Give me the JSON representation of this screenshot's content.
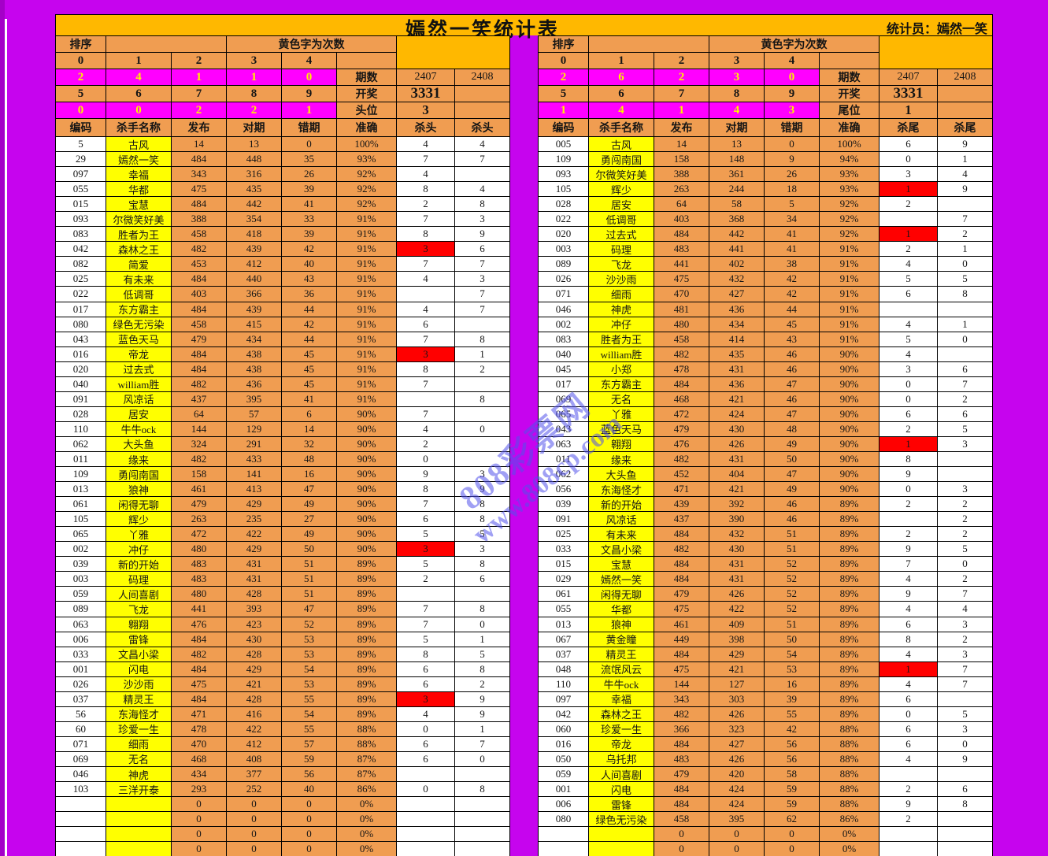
{
  "title": "嫣然一笑统计表",
  "statistician": "统计员：嫣然一笑",
  "watermark": {
    "line1": "808彩票网",
    "line2": "www.808cp.com"
  },
  "colors": {
    "background": "#C604EE",
    "gold": "#FFB800",
    "cell_orange": "#F09D51",
    "magenta": "#FF00FF",
    "yellow": "#FFFF00",
    "red_highlight": "#FF0000",
    "watermark_blue": "#5252EB"
  },
  "tables": [
    {
      "sort_label": "排序",
      "yellow_note": "黄色字为次数",
      "digit_row_top": [
        "0",
        "1",
        "2",
        "3",
        "4"
      ],
      "count_row_top": [
        "2",
        "4",
        "1",
        "1",
        "0"
      ],
      "digit_row_bottom": [
        "5",
        "6",
        "7",
        "8",
        "9"
      ],
      "count_row_bottom": [
        "0",
        "0",
        "2",
        "2",
        "1"
      ],
      "period_label": "期数",
      "periods": [
        "2407",
        "2408"
      ],
      "draw_label": "开奖",
      "draw_value": "3331",
      "pos_label": "头位",
      "pos_value": "3",
      "columns": [
        "编码",
        "杀手名称",
        "发布",
        "对期",
        "错期",
        "准确",
        "杀头",
        "杀头"
      ],
      "red_rows": [
        7,
        14,
        27,
        37
      ],
      "rows": [
        [
          "5",
          "古风",
          "14",
          "13",
          "0",
          "100%",
          "4",
          "4"
        ],
        [
          "29",
          "嫣然一笑",
          "484",
          "448",
          "35",
          "93%",
          "7",
          "7"
        ],
        [
          "097",
          "幸福",
          "343",
          "316",
          "26",
          "92%",
          "4",
          ""
        ],
        [
          "055",
          "华都",
          "475",
          "435",
          "39",
          "92%",
          "8",
          "4"
        ],
        [
          "015",
          "宝慧",
          "484",
          "442",
          "41",
          "92%",
          "2",
          "8"
        ],
        [
          "093",
          "尔微笑好美",
          "388",
          "354",
          "33",
          "91%",
          "7",
          "3"
        ],
        [
          "083",
          "胜者为王",
          "458",
          "418",
          "39",
          "91%",
          "8",
          "9"
        ],
        [
          "042",
          "森林之王",
          "482",
          "439",
          "42",
          "91%",
          "3",
          "6"
        ],
        [
          "082",
          "简爱",
          "453",
          "412",
          "40",
          "91%",
          "7",
          "7"
        ],
        [
          "025",
          "有未来",
          "484",
          "440",
          "43",
          "91%",
          "4",
          "3"
        ],
        [
          "022",
          "低调哥",
          "403",
          "366",
          "36",
          "91%",
          "",
          "7"
        ],
        [
          "017",
          "东方霸主",
          "484",
          "439",
          "44",
          "91%",
          "4",
          "7"
        ],
        [
          "080",
          "绿色无污染",
          "458",
          "415",
          "42",
          "91%",
          "6",
          ""
        ],
        [
          "043",
          "蓝色天马",
          "479",
          "434",
          "44",
          "91%",
          "7",
          "8"
        ],
        [
          "016",
          "帝龙",
          "484",
          "438",
          "45",
          "91%",
          "3",
          "1"
        ],
        [
          "020",
          "过去式",
          "484",
          "438",
          "45",
          "91%",
          "8",
          "2"
        ],
        [
          "040",
          "william胜",
          "482",
          "436",
          "45",
          "91%",
          "7",
          ""
        ],
        [
          "091",
          "风凉话",
          "437",
          "395",
          "41",
          "91%",
          "",
          "8"
        ],
        [
          "028",
          "居安",
          "64",
          "57",
          "6",
          "90%",
          "7",
          ""
        ],
        [
          "110",
          "牛牛ock",
          "144",
          "129",
          "14",
          "90%",
          "4",
          "0"
        ],
        [
          "062",
          "大头鱼",
          "324",
          "291",
          "32",
          "90%",
          "2",
          ""
        ],
        [
          "011",
          "缘来",
          "482",
          "433",
          "48",
          "90%",
          "0",
          ""
        ],
        [
          "109",
          "勇闯南国",
          "158",
          "141",
          "16",
          "90%",
          "9",
          "3"
        ],
        [
          "013",
          "狼神",
          "461",
          "413",
          "47",
          "90%",
          "8",
          "9"
        ],
        [
          "061",
          "闲得无聊",
          "479",
          "429",
          "49",
          "90%",
          "7",
          "8"
        ],
        [
          "105",
          "辉少",
          "263",
          "235",
          "27",
          "90%",
          "6",
          "8"
        ],
        [
          "065",
          "丫雅",
          "472",
          "422",
          "49",
          "90%",
          "5",
          "5"
        ],
        [
          "002",
          "冲仔",
          "480",
          "429",
          "50",
          "90%",
          "3",
          "3"
        ],
        [
          "039",
          "新的开始",
          "483",
          "431",
          "51",
          "89%",
          "5",
          "8"
        ],
        [
          "003",
          "码理",
          "483",
          "431",
          "51",
          "89%",
          "2",
          "6"
        ],
        [
          "059",
          "人间喜剧",
          "480",
          "428",
          "51",
          "89%",
          "",
          ""
        ],
        [
          "089",
          "飞龙",
          "441",
          "393",
          "47",
          "89%",
          "7",
          "8"
        ],
        [
          "063",
          "翱翔",
          "476",
          "423",
          "52",
          "89%",
          "7",
          "0"
        ],
        [
          "006",
          "雷锋",
          "484",
          "430",
          "53",
          "89%",
          "5",
          "1"
        ],
        [
          "033",
          "文昌小梁",
          "482",
          "428",
          "53",
          "89%",
          "8",
          "5"
        ],
        [
          "001",
          "闪电",
          "484",
          "429",
          "54",
          "89%",
          "6",
          "8"
        ],
        [
          "026",
          "沙沙雨",
          "475",
          "421",
          "53",
          "89%",
          "6",
          "2"
        ],
        [
          "037",
          "精灵王",
          "484",
          "428",
          "55",
          "89%",
          "3",
          "9"
        ],
        [
          "56",
          "东海怪才",
          "471",
          "416",
          "54",
          "89%",
          "4",
          "9"
        ],
        [
          "60",
          "珍爱一生",
          "478",
          "422",
          "55",
          "88%",
          "0",
          "1"
        ],
        [
          "071",
          "细雨",
          "470",
          "412",
          "57",
          "88%",
          "6",
          "7"
        ],
        [
          "069",
          "无名",
          "468",
          "408",
          "59",
          "87%",
          "6",
          "0"
        ],
        [
          "046",
          "神虎",
          "434",
          "377",
          "56",
          "87%",
          "",
          ""
        ],
        [
          "103",
          "三洋开泰",
          "293",
          "252",
          "40",
          "86%",
          "0",
          "8"
        ],
        [
          "",
          "",
          "0",
          "0",
          "0",
          "0%",
          "",
          ""
        ],
        [
          "",
          "",
          "0",
          "0",
          "0",
          "0%",
          "",
          ""
        ],
        [
          "",
          "",
          "0",
          "0",
          "0",
          "0%",
          "",
          ""
        ],
        [
          "",
          "",
          "0",
          "0",
          "0",
          "0%",
          "",
          ""
        ]
      ]
    },
    {
      "sort_label": "排序",
      "yellow_note": "黄色字为次数",
      "digit_row_top": [
        "0",
        "1",
        "2",
        "3",
        "4"
      ],
      "count_row_top": [
        "2",
        "6",
        "2",
        "3",
        "0"
      ],
      "digit_row_bottom": [
        "5",
        "6",
        "7",
        "8",
        "9"
      ],
      "count_row_bottom": [
        "1",
        "4",
        "1",
        "4",
        "3"
      ],
      "period_label": "期数",
      "periods": [
        "2407",
        "2408"
      ],
      "draw_label": "开奖",
      "draw_value": "3331",
      "pos_label": "尾位",
      "pos_value": "1",
      "columns": [
        "编码",
        "杀手名称",
        "发布",
        "对期",
        "错期",
        "准确",
        "杀尾",
        "杀尾"
      ],
      "red_rows": [
        3,
        6,
        20,
        35
      ],
      "rows": [
        [
          "005",
          "古风",
          "14",
          "13",
          "0",
          "100%",
          "6",
          "9"
        ],
        [
          "109",
          "勇闯南国",
          "158",
          "148",
          "9",
          "94%",
          "0",
          "1"
        ],
        [
          "093",
          "尔微笑好美",
          "388",
          "361",
          "26",
          "93%",
          "3",
          "4"
        ],
        [
          "105",
          "辉少",
          "263",
          "244",
          "18",
          "93%",
          "1",
          "9"
        ],
        [
          "028",
          "居安",
          "64",
          "58",
          "5",
          "92%",
          "2",
          ""
        ],
        [
          "022",
          "低调哥",
          "403",
          "368",
          "34",
          "92%",
          "",
          "7"
        ],
        [
          "020",
          "过去式",
          "484",
          "442",
          "41",
          "92%",
          "1",
          "2"
        ],
        [
          "003",
          "码理",
          "483",
          "441",
          "41",
          "91%",
          "2",
          "1"
        ],
        [
          "089",
          "飞龙",
          "441",
          "402",
          "38",
          "91%",
          "4",
          "0"
        ],
        [
          "026",
          "沙沙雨",
          "475",
          "432",
          "42",
          "91%",
          "5",
          "5"
        ],
        [
          "071",
          "细雨",
          "470",
          "427",
          "42",
          "91%",
          "6",
          "8"
        ],
        [
          "046",
          "神虎",
          "481",
          "436",
          "44",
          "91%",
          "",
          ""
        ],
        [
          "002",
          "冲仔",
          "480",
          "434",
          "45",
          "91%",
          "4",
          "1"
        ],
        [
          "083",
          "胜者为王",
          "458",
          "414",
          "43",
          "91%",
          "5",
          "0"
        ],
        [
          "040",
          "william胜",
          "482",
          "435",
          "46",
          "90%",
          "4",
          ""
        ],
        [
          "045",
          "小郑",
          "478",
          "431",
          "46",
          "90%",
          "3",
          "6"
        ],
        [
          "017",
          "东方霸主",
          "484",
          "436",
          "47",
          "90%",
          "0",
          "7"
        ],
        [
          "069",
          "无名",
          "468",
          "421",
          "46",
          "90%",
          "0",
          "2"
        ],
        [
          "065",
          "丫雅",
          "472",
          "424",
          "47",
          "90%",
          "6",
          "6"
        ],
        [
          "043",
          "蓝色天马",
          "479",
          "430",
          "48",
          "90%",
          "2",
          "5"
        ],
        [
          "063",
          "翱翔",
          "476",
          "426",
          "49",
          "90%",
          "1",
          "3"
        ],
        [
          "011",
          "缘来",
          "482",
          "431",
          "50",
          "90%",
          "8",
          ""
        ],
        [
          "062",
          "大头鱼",
          "452",
          "404",
          "47",
          "90%",
          "9",
          ""
        ],
        [
          "056",
          "东海怪才",
          "471",
          "421",
          "49",
          "90%",
          "0",
          "3"
        ],
        [
          "039",
          "新的开始",
          "439",
          "392",
          "46",
          "89%",
          "2",
          "2"
        ],
        [
          "091",
          "风凉话",
          "437",
          "390",
          "46",
          "89%",
          "",
          "2"
        ],
        [
          "025",
          "有未来",
          "484",
          "432",
          "51",
          "89%",
          "2",
          "2"
        ],
        [
          "033",
          "文昌小梁",
          "482",
          "430",
          "51",
          "89%",
          "9",
          "5"
        ],
        [
          "015",
          "宝慧",
          "484",
          "431",
          "52",
          "89%",
          "7",
          "0"
        ],
        [
          "029",
          "嫣然一笑",
          "484",
          "431",
          "52",
          "89%",
          "4",
          "2"
        ],
        [
          "061",
          "闲得无聊",
          "479",
          "426",
          "52",
          "89%",
          "9",
          "7"
        ],
        [
          "055",
          "华都",
          "475",
          "422",
          "52",
          "89%",
          "4",
          "4"
        ],
        [
          "013",
          "狼神",
          "461",
          "409",
          "51",
          "89%",
          "6",
          "3"
        ],
        [
          "067",
          "黄金瞳",
          "449",
          "398",
          "50",
          "89%",
          "8",
          "2"
        ],
        [
          "037",
          "精灵王",
          "484",
          "429",
          "54",
          "89%",
          "4",
          "3"
        ],
        [
          "048",
          "流氓风云",
          "475",
          "421",
          "53",
          "89%",
          "1",
          "7"
        ],
        [
          "110",
          "牛牛ock",
          "144",
          "127",
          "16",
          "89%",
          "4",
          "7"
        ],
        [
          "097",
          "幸福",
          "343",
          "303",
          "39",
          "89%",
          "6",
          ""
        ],
        [
          "042",
          "森林之王",
          "482",
          "426",
          "55",
          "89%",
          "0",
          "5"
        ],
        [
          "060",
          "珍爱一生",
          "366",
          "323",
          "42",
          "88%",
          "6",
          "3"
        ],
        [
          "016",
          "帝龙",
          "484",
          "427",
          "56",
          "88%",
          "6",
          "0"
        ],
        [
          "050",
          "乌托邦",
          "483",
          "426",
          "56",
          "88%",
          "4",
          "9"
        ],
        [
          "059",
          "人间喜剧",
          "479",
          "420",
          "58",
          "88%",
          "",
          ""
        ],
        [
          "001",
          "闪电",
          "484",
          "424",
          "59",
          "88%",
          "2",
          "6"
        ],
        [
          "006",
          "雷锋",
          "484",
          "424",
          "59",
          "88%",
          "9",
          "8"
        ],
        [
          "080",
          "绿色无污染",
          "458",
          "395",
          "62",
          "86%",
          "2",
          ""
        ],
        [
          "",
          "",
          "0",
          "0",
          "0",
          "0%",
          "",
          ""
        ],
        [
          "",
          "",
          "0",
          "0",
          "0",
          "0%",
          "",
          ""
        ]
      ]
    }
  ]
}
